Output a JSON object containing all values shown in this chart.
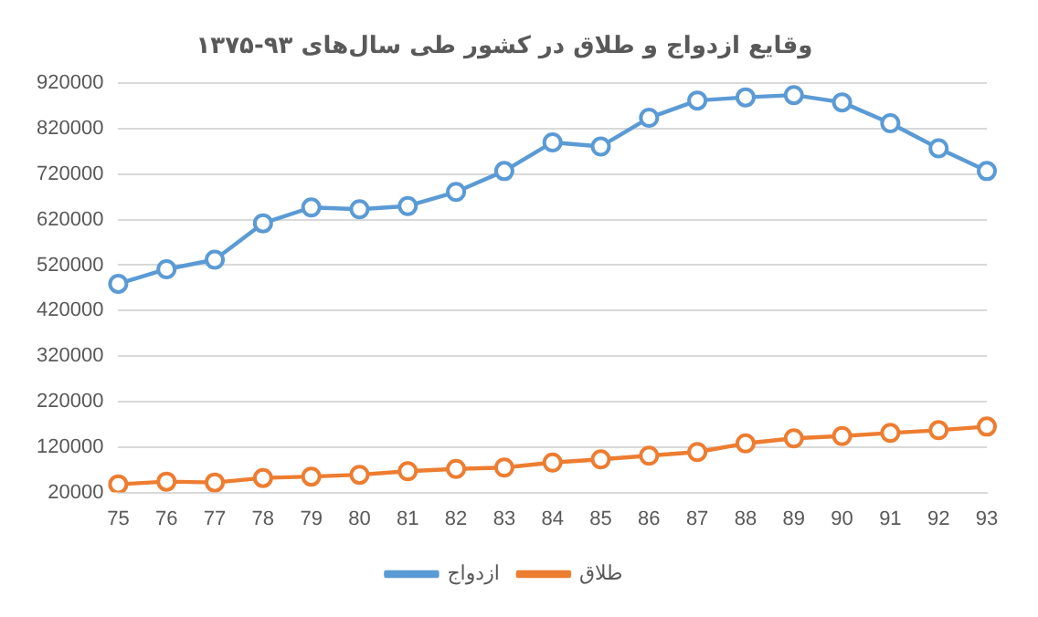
{
  "chart_data": {
    "type": "line",
    "title": "وقایع ازدواج و طلاق در کشور طی سال‌های ۹۳-۱۳۷۵",
    "categories": [
      "75",
      "76",
      "77",
      "78",
      "79",
      "80",
      "81",
      "82",
      "83",
      "84",
      "85",
      "86",
      "87",
      "88",
      "89",
      "90",
      "91",
      "92",
      "93"
    ],
    "series": [
      {
        "name": "ازدواج",
        "color": "#5b9bd5",
        "values": [
          479000,
          511000,
          532000,
          612000,
          647000,
          643000,
          650000,
          681000,
          727000,
          790000,
          781000,
          844000,
          882000,
          889000,
          894000,
          878000,
          832000,
          777000,
          727000
        ]
      },
      {
        "name": "طلاق",
        "color": "#ed7d31",
        "values": [
          38000,
          44000,
          42000,
          52000,
          55000,
          59000,
          67000,
          72000,
          75000,
          86000,
          93000,
          101000,
          109000,
          128000,
          139000,
          144000,
          151000,
          157000,
          165000
        ]
      }
    ],
    "ylim": [
      20000,
      920000
    ],
    "yticks": [
      20000,
      120000,
      220000,
      320000,
      420000,
      520000,
      620000,
      720000,
      820000,
      920000
    ],
    "grid": "y",
    "legend": "bottom",
    "marker": "circle",
    "line_style": "solid"
  }
}
